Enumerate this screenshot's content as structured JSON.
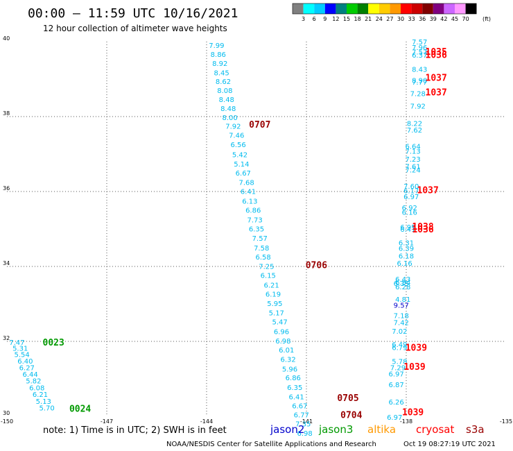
{
  "header": {
    "title": "00:00 – 11:59 UTC 10/16/2021",
    "subtitle": "12 hour collection of altimeter wave heights"
  },
  "colorbar": {
    "colors": [
      "#808080",
      "#00ffff",
      "#00ccff",
      "#0000ff",
      "#008080",
      "#00cc00",
      "#008000",
      "#ffff00",
      "#ffcc00",
      "#ff9900",
      "#ff0000",
      "#cc0000",
      "#800000",
      "#800080",
      "#cc66ff",
      "#ff99ff",
      "#000000"
    ],
    "labels": [
      "3",
      "6",
      "9",
      "12",
      "15",
      "18",
      "21",
      "24",
      "27",
      "30",
      "33",
      "36",
      "39",
      "42",
      "45",
      "70"
    ],
    "unit": "(ft)"
  },
  "footer": {
    "note": "note:  1) Time is in UTC; 2) SWH is in feet",
    "satellites": [
      {
        "name": "jason2",
        "color": "#0000cc"
      },
      {
        "name": "jason3",
        "color": "#009900"
      },
      {
        "name": "altika",
        "color": "#ff9900"
      },
      {
        "name": "cryosat",
        "color": "#ff0000"
      },
      {
        "name": "s3a",
        "color": "#990000"
      }
    ],
    "credit": "NOAA/NESDIS Center for Satellite Applications and Research",
    "timestamp": "Oct 19 08:27:19 UTC 2021"
  },
  "chart_data": {
    "type": "scatter",
    "xlim": [
      -150,
      -135
    ],
    "ylim": [
      30,
      40
    ],
    "x_ticks": [
      -150,
      -147,
      -144,
      -141,
      -138,
      -135
    ],
    "y_ticks": [
      30,
      32,
      34,
      36,
      38,
      40
    ],
    "grid": true,
    "value_color": "#00bbee",
    "alt_value_color": "#0000cc",
    "series": [
      {
        "name": "jason3",
        "color": "#009900",
        "times": [
          {
            "label": "0023",
            "lon": -148.6,
            "lat": 31.98
          },
          {
            "label": "0024",
            "lon": -147.8,
            "lat": 30.21
          }
        ],
        "points": [
          {
            "lon": -149.7,
            "lat": 31.98,
            "v": "7.47"
          },
          {
            "lon": -149.6,
            "lat": 31.82,
            "v": "5.31"
          },
          {
            "lon": -149.55,
            "lat": 31.66,
            "v": "5.54"
          },
          {
            "lon": -149.45,
            "lat": 31.48,
            "v": "6.40"
          },
          {
            "lon": -149.4,
            "lat": 31.31,
            "v": "6.27"
          },
          {
            "lon": -149.3,
            "lat": 31.13,
            "v": "6.44"
          },
          {
            "lon": -149.2,
            "lat": 30.95,
            "v": "5.82"
          },
          {
            "lon": -149.1,
            "lat": 30.77,
            "v": "6.08"
          },
          {
            "lon": -149.0,
            "lat": 30.59,
            "v": "6.21"
          },
          {
            "lon": -148.9,
            "lat": 30.41,
            "v": "5.13"
          },
          {
            "lon": -148.8,
            "lat": 30.23,
            "v": "5.70"
          }
        ]
      },
      {
        "name": "s3a",
        "color": "#990000",
        "times": [
          {
            "label": "0707",
            "lon": -142.4,
            "lat": 37.8
          },
          {
            "label": "0706",
            "lon": -140.7,
            "lat": 34.05
          },
          {
            "label": "0705",
            "lon": -139.75,
            "lat": 30.5
          },
          {
            "label": "0704",
            "lon": -139.65,
            "lat": 30.05
          }
        ],
        "points": [
          {
            "lon": -143.7,
            "lat": 39.91,
            "v": "7.99"
          },
          {
            "lon": -143.65,
            "lat": 39.67,
            "v": "8.86"
          },
          {
            "lon": -143.6,
            "lat": 39.43,
            "v": "8.92"
          },
          {
            "lon": -143.55,
            "lat": 39.18,
            "v": "8.45"
          },
          {
            "lon": -143.5,
            "lat": 38.94,
            "v": "8.62"
          },
          {
            "lon": -143.45,
            "lat": 38.7,
            "v": "8.08"
          },
          {
            "lon": -143.4,
            "lat": 38.46,
            "v": "8.48"
          },
          {
            "lon": -143.35,
            "lat": 38.22,
            "v": "8.48"
          },
          {
            "lon": -143.3,
            "lat": 37.98,
            "v": "8.00"
          },
          {
            "lon": -143.2,
            "lat": 37.75,
            "v": "7.92"
          },
          {
            "lon": -143.1,
            "lat": 37.51,
            "v": "7.46"
          },
          {
            "lon": -143.05,
            "lat": 37.26,
            "v": "6.56"
          },
          {
            "lon": -143.0,
            "lat": 36.99,
            "v": "5.42"
          },
          {
            "lon": -142.95,
            "lat": 36.74,
            "v": "5.14"
          },
          {
            "lon": -142.9,
            "lat": 36.5,
            "v": "6.67"
          },
          {
            "lon": -142.8,
            "lat": 36.25,
            "v": "7.68"
          },
          {
            "lon": -142.75,
            "lat": 36.01,
            "v": "6.41"
          },
          {
            "lon": -142.7,
            "lat": 35.75,
            "v": "6.13"
          },
          {
            "lon": -142.6,
            "lat": 35.51,
            "v": "6.86"
          },
          {
            "lon": -142.55,
            "lat": 35.25,
            "v": "7.73"
          },
          {
            "lon": -142.5,
            "lat": 35.01,
            "v": "6.35"
          },
          {
            "lon": -142.4,
            "lat": 34.76,
            "v": "7.57"
          },
          {
            "lon": -142.35,
            "lat": 34.5,
            "v": "7.58"
          },
          {
            "lon": -142.3,
            "lat": 34.26,
            "v": "6.58"
          },
          {
            "lon": -142.2,
            "lat": 34.01,
            "v": "7.25"
          },
          {
            "lon": -142.15,
            "lat": 33.77,
            "v": "6.15"
          },
          {
            "lon": -142.05,
            "lat": 33.51,
            "v": "6.21"
          },
          {
            "lon": -142.0,
            "lat": 33.27,
            "v": "6.19"
          },
          {
            "lon": -141.95,
            "lat": 33.02,
            "v": "5.95"
          },
          {
            "lon": -141.9,
            "lat": 32.77,
            "v": "5.17"
          },
          {
            "lon": -141.8,
            "lat": 32.53,
            "v": "5.47"
          },
          {
            "lon": -141.75,
            "lat": 32.27,
            "v": "6.96"
          },
          {
            "lon": -141.7,
            "lat": 32.02,
            "v": "6.98"
          },
          {
            "lon": -141.6,
            "lat": 31.78,
            "v": "6.01"
          },
          {
            "lon": -141.55,
            "lat": 31.53,
            "v": "6.32"
          },
          {
            "lon": -141.5,
            "lat": 31.27,
            "v": "5.96"
          },
          {
            "lon": -141.4,
            "lat": 31.04,
            "v": "6.86"
          },
          {
            "lon": -141.35,
            "lat": 30.78,
            "v": "6.35"
          },
          {
            "lon": -141.3,
            "lat": 30.53,
            "v": "6.41"
          },
          {
            "lon": -141.2,
            "lat": 30.29,
            "v": "6.67"
          },
          {
            "lon": -141.15,
            "lat": 30.05,
            "v": "6.77"
          },
          {
            "lon": -141.1,
            "lat": 29.81,
            "v": "7.35"
          },
          {
            "lon": -141.05,
            "lat": 29.56,
            "v": "6.98"
          }
        ]
      },
      {
        "name": "cryosat",
        "color": "#ff0000",
        "times": [
          {
            "label": "1035",
            "lon": -137.1,
            "lat": 39.74
          },
          {
            "label": "1036",
            "lon": -137.1,
            "lat": 39.66
          },
          {
            "label": "1037",
            "lon": -137.1,
            "lat": 39.05
          },
          {
            "label": "1037",
            "lon": -137.1,
            "lat": 38.66
          },
          {
            "label": "1037",
            "lon": -137.35,
            "lat": 36.05
          },
          {
            "label": "1038",
            "lon": -137.5,
            "lat": 35.07
          },
          {
            "label": "1036",
            "lon": -137.5,
            "lat": 35.0
          },
          {
            "label": "1039",
            "lon": -137.7,
            "lat": 31.84
          },
          {
            "label": "1039",
            "lon": -137.75,
            "lat": 31.33
          },
          {
            "label": "1039",
            "lon": -137.8,
            "lat": 30.12
          }
        ],
        "points": [
          {
            "lon": -137.6,
            "lat": 40.0,
            "v": "7.57"
          },
          {
            "lon": -137.6,
            "lat": 39.85,
            "v": "7.96"
          },
          {
            "lon": -137.6,
            "lat": 39.73,
            "v": "7.57"
          },
          {
            "lon": -137.6,
            "lat": 39.65,
            "v": "6.37"
          },
          {
            "lon": -137.6,
            "lat": 39.27,
            "v": "8.43"
          },
          {
            "lon": -137.6,
            "lat": 38.97,
            "v": "8.90"
          },
          {
            "lon": -137.6,
            "lat": 38.93,
            "v": "7.77"
          },
          {
            "lon": -137.65,
            "lat": 38.62,
            "v": "7.28"
          },
          {
            "lon": -137.65,
            "lat": 38.29,
            "v": "7.92"
          },
          {
            "lon": -137.75,
            "lat": 37.82,
            "v": "8.22"
          },
          {
            "lon": -137.75,
            "lat": 37.65,
            "v": "7.62"
          },
          {
            "lon": -137.8,
            "lat": 37.21,
            "v": "6.64"
          },
          {
            "lon": -137.8,
            "lat": 37.08,
            "v": "7.13"
          },
          {
            "lon": -137.8,
            "lat": 36.87,
            "v": "7.23"
          },
          {
            "lon": -137.8,
            "lat": 36.68,
            "v": "7.61"
          },
          {
            "lon": -137.8,
            "lat": 36.58,
            "v": "7.24"
          },
          {
            "lon": -137.85,
            "lat": 36.15,
            "v": "7.60"
          },
          {
            "lon": -137.85,
            "lat": 36.03,
            "v": "6.17"
          },
          {
            "lon": -137.85,
            "lat": 35.87,
            "v": "6.97"
          },
          {
            "lon": -137.9,
            "lat": 35.57,
            "v": "6.92"
          },
          {
            "lon": -137.9,
            "lat": 35.45,
            "v": "6.16"
          },
          {
            "lon": -137.95,
            "lat": 35.06,
            "v": "6.95"
          },
          {
            "lon": -137.95,
            "lat": 35.0,
            "v": "6.41"
          },
          {
            "lon": -138.0,
            "lat": 34.64,
            "v": "6.31"
          },
          {
            "lon": -138.0,
            "lat": 34.49,
            "v": "6.39"
          },
          {
            "lon": -138.0,
            "lat": 34.29,
            "v": "6.18"
          },
          {
            "lon": -138.05,
            "lat": 34.09,
            "v": "6.16"
          },
          {
            "lon": -138.1,
            "lat": 33.67,
            "v": "6.43"
          },
          {
            "lon": -138.1,
            "lat": 33.58,
            "v": "6.54"
          },
          {
            "lon": -138.1,
            "lat": 33.46,
            "v": "6.28"
          },
          {
            "lon": -138.1,
            "lat": 33.13,
            "v": "4.81"
          },
          {
            "lon": -138.15,
            "lat": 33.56,
            "v": "6.35"
          },
          {
            "lon": -138.15,
            "lat": 32.69,
            "v": "7.18"
          },
          {
            "lon": -138.15,
            "lat": 32.51,
            "v": "7.42"
          },
          {
            "lon": -138.2,
            "lat": 32.28,
            "v": "7.02"
          },
          {
            "lon": -138.2,
            "lat": 31.93,
            "v": "6.49"
          },
          {
            "lon": -138.2,
            "lat": 31.84,
            "v": "6.79"
          },
          {
            "lon": -138.2,
            "lat": 31.47,
            "v": "5.78"
          },
          {
            "lon": -138.25,
            "lat": 31.31,
            "v": "7.29"
          },
          {
            "lon": -138.3,
            "lat": 31.14,
            "v": "6.97"
          },
          {
            "lon": -138.3,
            "lat": 30.85,
            "v": "6.87"
          },
          {
            "lon": -138.3,
            "lat": 30.39,
            "v": "6.26"
          },
          {
            "lon": -138.35,
            "lat": 29.98,
            "v": "6.97"
          }
        ]
      },
      {
        "name": "jason2",
        "color": "#0000cc",
        "times": [],
        "points": [
          {
            "lon": -138.15,
            "lat": 32.97,
            "v": "9.57"
          }
        ]
      }
    ]
  }
}
